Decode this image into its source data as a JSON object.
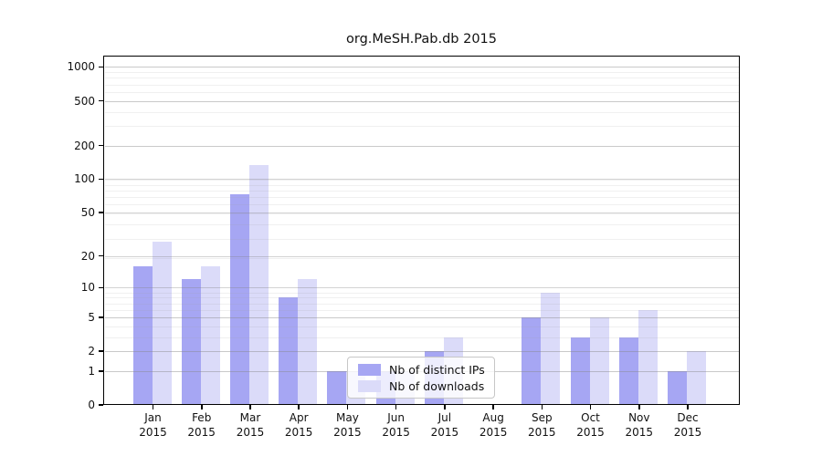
{
  "figure": {
    "background_color": "#ffffff",
    "title": "org.MeSH.Pab.db 2015"
  },
  "chart_data": {
    "type": "bar",
    "title": "org.MeSH.Pab.db 2015",
    "categories": [
      "Jan 2015",
      "Feb 2015",
      "Mar 2015",
      "Apr 2015",
      "May 2015",
      "Jun 2015",
      "Jul 2015",
      "Aug 2015",
      "Sep 2015",
      "Oct 2015",
      "Nov 2015",
      "Dec 2015"
    ],
    "series": [
      {
        "name": "Nb of distinct IPs",
        "color": "#a6a6f3",
        "values": [
          16,
          12,
          73,
          8,
          1,
          1,
          2,
          0,
          5,
          3,
          3,
          1
        ]
      },
      {
        "name": "Nb of downloads",
        "color": "#dbdbf9",
        "values": [
          27,
          16,
          135,
          12,
          1,
          1,
          3,
          0,
          9,
          5,
          6,
          2
        ]
      }
    ],
    "xlabel": "",
    "ylabel": "",
    "y_scale": "log10(value+1)",
    "ylim": [
      0,
      1260
    ],
    "y_ticks": [
      0,
      1,
      2,
      5,
      10,
      20,
      50,
      100,
      200,
      500,
      1000
    ],
    "y_minor_ticks": [
      1,
      2,
      3,
      4,
      5,
      6,
      7,
      8,
      9,
      19,
      29,
      39,
      49,
      59,
      69,
      79,
      89,
      99,
      199,
      299,
      399,
      499,
      599,
      699,
      799,
      899,
      999
    ],
    "grid": true,
    "grid_on_top_of_bars": true,
    "legend_position": "inside lower-center (over May-Aug)",
    "legend": [
      "Nb of distinct IPs",
      "Nb of downloads"
    ]
  }
}
